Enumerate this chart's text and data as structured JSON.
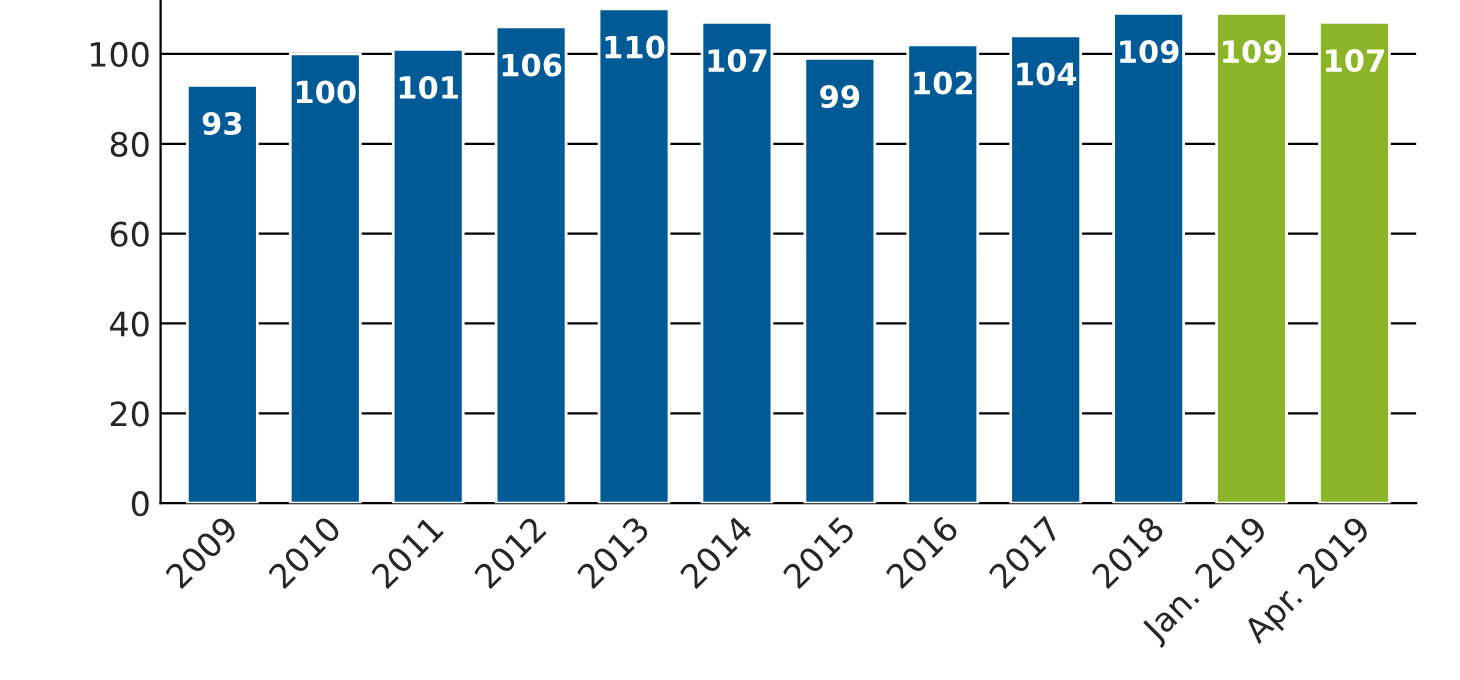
{
  "chart_data": {
    "type": "bar",
    "categories": [
      "2009",
      "2010",
      "2011",
      "2012",
      "2013",
      "2014",
      "2015",
      "2016",
      "2017",
      "2018",
      "Jan. 2019",
      "Apr. 2019"
    ],
    "values": [
      93,
      100,
      101,
      106,
      110,
      107,
      99,
      102,
      104,
      109,
      109,
      107
    ],
    "colors": [
      "#005a96",
      "#005a96",
      "#005a96",
      "#005a96",
      "#005a96",
      "#005a96",
      "#005a96",
      "#005a96",
      "#005a96",
      "#005a96",
      "#8cb428",
      "#8cb428"
    ],
    "ylim": [
      0,
      112
    ],
    "yticks": [
      0,
      20,
      40,
      60,
      80,
      100
    ],
    "grid": "y",
    "data_labels": true
  }
}
